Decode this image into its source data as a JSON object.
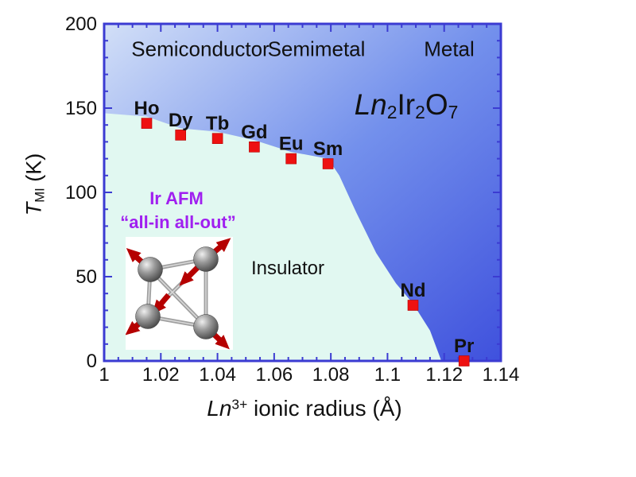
{
  "chart_data": {
    "type": "scatter",
    "title_segments": [
      {
        "text": "Ln",
        "style": "italic"
      },
      {
        "text": "2",
        "style": "sub"
      },
      {
        "text": "Ir",
        "style": "normal"
      },
      {
        "text": "2",
        "style": "sub"
      },
      {
        "text": "O",
        "style": "normal"
      },
      {
        "text": "7",
        "style": "sub"
      }
    ],
    "xlabel_segments": [
      {
        "text": "Ln",
        "style": "italic"
      },
      {
        "text": "3+",
        "style": "sup"
      },
      {
        "text": " ionic radius (Å)",
        "style": "normal"
      }
    ],
    "ylabel_segments": [
      {
        "text": "T",
        "style": "italic"
      },
      {
        "text": "MI",
        "style": "sub"
      },
      {
        "text": " (K)",
        "style": "normal"
      }
    ],
    "xlim": [
      1.0,
      1.14
    ],
    "ylim": [
      0,
      200
    ],
    "x_major_step": 0.02,
    "x_minor_step": 0.005,
    "y_major_step": 50,
    "y_minor_step": 10,
    "x_tick_labels": [
      "1",
      "1.02",
      "1.04",
      "1.06",
      "1.08",
      "1.1",
      "1.12",
      "1.14"
    ],
    "y_tick_labels": [
      "0",
      "50",
      "100",
      "150",
      "200"
    ],
    "grid": false,
    "points": [
      {
        "label": "Ho",
        "x": 1.015,
        "y": 141
      },
      {
        "label": "Dy",
        "x": 1.027,
        "y": 134
      },
      {
        "label": "Tb",
        "x": 1.04,
        "y": 132
      },
      {
        "label": "Gd",
        "x": 1.053,
        "y": 127
      },
      {
        "label": "Eu",
        "x": 1.066,
        "y": 120
      },
      {
        "label": "Sm",
        "x": 1.079,
        "y": 117
      },
      {
        "label": "Nd",
        "x": 1.109,
        "y": 33
      },
      {
        "label": "Pr",
        "x": 1.127,
        "y": 0
      }
    ],
    "phase_boundary": [
      [
        1.0,
        147
      ],
      [
        1.015,
        145
      ],
      [
        1.027,
        138
      ],
      [
        1.04,
        136
      ],
      [
        1.053,
        131
      ],
      [
        1.066,
        124
      ],
      [
        1.079,
        120
      ],
      [
        1.083,
        110
      ],
      [
        1.089,
        88
      ],
      [
        1.096,
        64
      ],
      [
        1.103,
        46
      ],
      [
        1.109,
        34
      ],
      [
        1.115,
        18
      ],
      [
        1.119,
        0
      ]
    ],
    "regions": {
      "semiconductor": "Semiconductor",
      "semimetal": "Semimetal",
      "metal": "Metal",
      "insulator": "Insulator"
    },
    "annotations": {
      "ir_afm_line1": "Ir AFM",
      "ir_afm_line2": "“all-in all-out”"
    },
    "colors": {
      "marker": "#ee1111",
      "frame": "#3b3bd2",
      "insulator_fill": "#e1f8f1",
      "metal_gradient_start": "#d2dff7",
      "metal_gradient_mid": "#7390ec",
      "metal_gradient_end": "#3f51dd",
      "annotation_purple": "#a020f0",
      "text": "#111111"
    }
  }
}
